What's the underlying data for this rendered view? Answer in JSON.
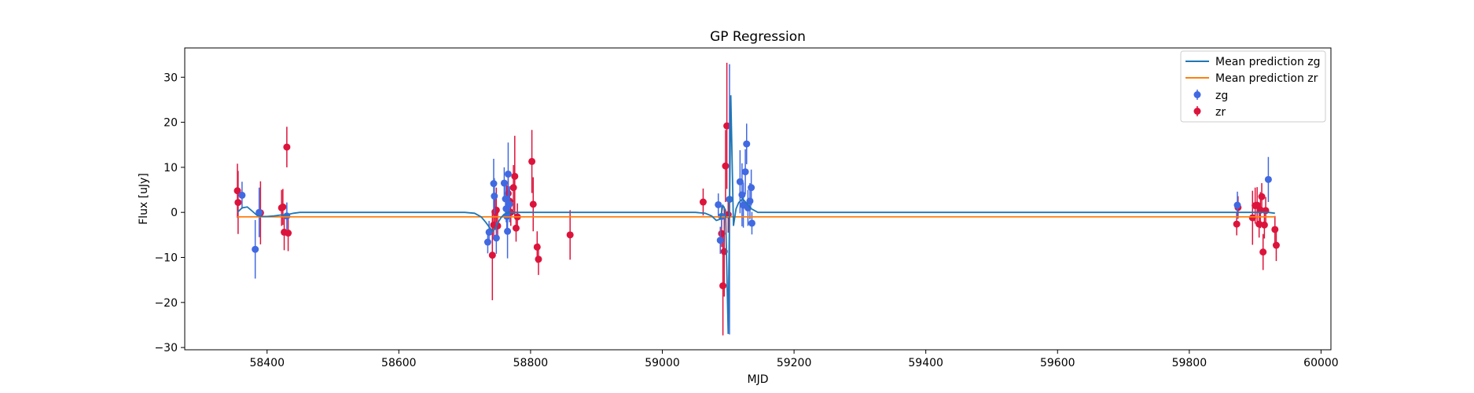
{
  "chart_data": {
    "type": "scatter",
    "title": "GP Regression",
    "xlabel": "MJD",
    "ylabel": "Flux [uJy]",
    "xlim": [
      58275,
      60015
    ],
    "ylim": [
      -30.5,
      36.5
    ],
    "xticks": [
      58400,
      58600,
      58800,
      59000,
      59200,
      59400,
      59600,
      59800,
      60000
    ],
    "yticks": [
      -30,
      -20,
      -10,
      0,
      10,
      20,
      30
    ],
    "xtick_labels": [
      "58400",
      "58600",
      "58800",
      "59000",
      "59200",
      "59400",
      "59600",
      "59800",
      "60000"
    ],
    "ytick_labels": [
      "−30",
      "−20",
      "−10",
      "0",
      "10",
      "20",
      "30"
    ],
    "grid": false,
    "legend": "top-right",
    "series": [
      {
        "name": "Mean prediction zg",
        "kind": "line",
        "color": "#1f77b4",
        "x": [
          58355,
          58362,
          58370,
          58378,
          58385,
          58392,
          58400,
          58410,
          58420,
          58430,
          58440,
          58450,
          58700,
          58715,
          58725,
          58732,
          58738,
          58742,
          58746,
          58750,
          58755,
          58760,
          58765,
          58770,
          58780,
          59050,
          59065,
          59075,
          59082,
          59088,
          59092,
          59096,
          59100,
          59104,
          59108,
          59112,
          59116,
          59122,
          59128,
          59135,
          59145,
          59860,
          59870,
          59880,
          59890,
          59900,
          59910,
          59920,
          59930
        ],
        "y": [
          0.0,
          1.0,
          1.2,
          0.2,
          -0.7,
          -0.9,
          -0.9,
          -0.8,
          -0.6,
          -0.5,
          -0.2,
          0.0,
          0.0,
          -0.2,
          -1.0,
          -2.2,
          -3.4,
          -4.2,
          -3.6,
          -2.4,
          -1.2,
          -0.4,
          -0.1,
          0.0,
          0.0,
          0.0,
          -0.2,
          -0.8,
          -1.8,
          -1.5,
          1.5,
          0.5,
          -27.0,
          26.0,
          -3.0,
          0.8,
          2.2,
          3.0,
          2.0,
          0.8,
          0.0,
          0.0,
          0.0,
          0.0,
          0.0,
          0.0,
          0.0,
          0.0,
          -0.2
        ]
      },
      {
        "name": "Mean prediction zr",
        "kind": "line",
        "color": "#ff7f0e",
        "x": [
          58355,
          59930
        ],
        "y": [
          -1.0,
          -1.0
        ]
      },
      {
        "name": "zg",
        "kind": "errorbar",
        "color": "#4169e1",
        "x": [
          58362,
          58382,
          58388,
          58430,
          58735,
          58737,
          58744,
          58745,
          58748,
          58760,
          58762,
          58763,
          58764,
          58765,
          58766,
          58768,
          59085,
          59088,
          59090,
          59102,
          59118,
          59121,
          59123,
          59126,
          59128,
          59130,
          59133,
          59135,
          59136,
          59873,
          59920
        ],
        "y": [
          3.8,
          -8.2,
          0.0,
          -0.8,
          -6.6,
          -4.4,
          6.4,
          3.6,
          -5.7,
          6.5,
          3.0,
          0.8,
          -0.9,
          -4.2,
          8.5,
          1.8,
          1.7,
          -6.2,
          -0.9,
          2.9,
          6.8,
          3.9,
          1.6,
          9.0,
          15.2,
          1.0,
          2.5,
          5.5,
          -2.4,
          1.6,
          7.3
        ],
        "yerr": [
          3.0,
          6.5,
          5.5,
          3.0,
          2.5,
          2.5,
          5.5,
          4.0,
          3.5,
          3.5,
          4.0,
          3.0,
          3.5,
          6.0,
          7.0,
          4.0,
          2.5,
          3.0,
          2.5,
          30.0,
          7.0,
          7.0,
          5.0,
          5.0,
          4.5,
          4.0,
          4.0,
          4.0,
          2.5,
          3.0,
          5.0
        ]
      },
      {
        "name": "zr",
        "kind": "errorbar",
        "color": "#dc143c",
        "x": [
          58355,
          58356,
          58390,
          58422,
          58424,
          58426,
          58430,
          58432,
          58742,
          58744,
          58746,
          58748,
          58750,
          58764,
          58766,
          58768,
          58770,
          58774,
          58776,
          58778,
          58780,
          58802,
          58804,
          58810,
          58812,
          58860,
          59062,
          59090,
          59092,
          59094,
          59096,
          59098,
          59100,
          59872,
          59874,
          59896,
          59900,
          59903,
          59906,
          59908,
          59910,
          59912,
          59914,
          59916,
          59930,
          59932
        ],
        "y": [
          4.8,
          2.2,
          -0.1,
          1.0,
          1.2,
          -4.4,
          14.5,
          -4.6,
          -9.5,
          -2.8,
          0.1,
          0.5,
          -3.0,
          3.0,
          4.2,
          2.5,
          0.0,
          5.5,
          8.0,
          -3.5,
          -1.0,
          11.3,
          1.8,
          -7.7,
          -10.4,
          -5.0,
          2.3,
          -4.7,
          -16.3,
          -8.7,
          10.3,
          19.2,
          -0.5,
          -2.6,
          1.1,
          -1.2,
          1.5,
          1.6,
          -2.6,
          0.5,
          3.5,
          -8.8,
          -2.8,
          0.4,
          -3.8,
          -7.3
        ],
        "yerr": [
          6.0,
          7.0,
          7.0,
          4.0,
          4.0,
          4.0,
          4.5,
          4.0,
          10.0,
          3.0,
          4.0,
          5.0,
          3.0,
          3.0,
          4.0,
          3.0,
          3.0,
          5.0,
          9.0,
          3.0,
          3.0,
          7.0,
          6.0,
          3.5,
          3.5,
          5.5,
          3.0,
          3.0,
          11.0,
          10.0,
          8.0,
          14.0,
          4.0,
          2.5,
          2.5,
          6.0,
          4.0,
          4.0,
          3.0,
          4.0,
          3.0,
          4.0,
          3.0,
          3.0,
          3.0,
          3.5
        ]
      }
    ]
  }
}
